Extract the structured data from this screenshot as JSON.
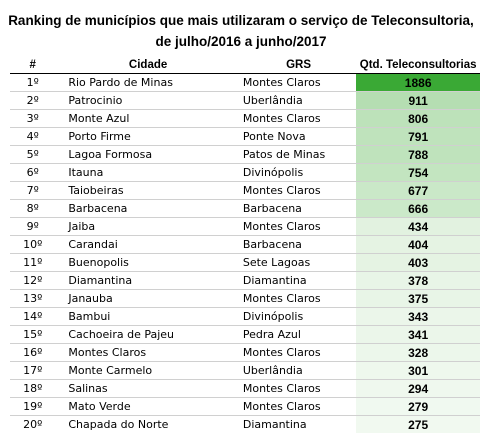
{
  "title": {
    "line1": "Ranking de municípios que mais utilizaram o serviço de Teleconsultoria,",
    "line2": "de julho/2016 a junho/2017"
  },
  "headers": {
    "rank": "#",
    "city": "Cidade",
    "grs": "GRS",
    "qtd": "Qtd. Teleconsultorias"
  },
  "rows": [
    {
      "rank": "1º",
      "city": "Rio Pardo de Minas",
      "grs": "Montes Claros",
      "qtd": "1886",
      "value": 1886,
      "color": "#3aa935"
    },
    {
      "rank": "2º",
      "city": "Patrocinio",
      "grs": "Uberlândia",
      "qtd": "911",
      "value": 911,
      "color": "#b5deb2"
    },
    {
      "rank": "3º",
      "city": "Monte Azul",
      "grs": "Montes Claros",
      "qtd": "806",
      "value": 806,
      "color": "#bde2ba"
    },
    {
      "rank": "4º",
      "city": "Porto Firme",
      "grs": "Ponte Nova",
      "qtd": "791",
      "value": 791,
      "color": "#bfe3bc"
    },
    {
      "rank": "5º",
      "city": "Lagoa Formosa",
      "grs": "Patos de Minas",
      "qtd": "788",
      "value": 788,
      "color": "#bfe3bc"
    },
    {
      "rank": "6º",
      "city": "Itauna",
      "grs": "Divinópolis",
      "qtd": "754",
      "value": 754,
      "color": "#c3e5c0"
    },
    {
      "rank": "7º",
      "city": "Taiobeiras",
      "grs": "Montes Claros",
      "qtd": "677",
      "value": 677,
      "color": "#cae8c8"
    },
    {
      "rank": "8º",
      "city": "Barbacena",
      "grs": "Barbacena",
      "qtd": "666",
      "value": 666,
      "color": "#cbe9c9"
    },
    {
      "rank": "9º",
      "city": "Jaiba",
      "grs": "Montes Claros",
      "qtd": "434",
      "value": 434,
      "color": "#e2f2e0"
    },
    {
      "rank": "10º",
      "city": "Carandai",
      "grs": "Barbacena",
      "qtd": "404",
      "value": 404,
      "color": "#e5f3e3"
    },
    {
      "rank": "11º",
      "city": "Buenopolis",
      "grs": "Sete Lagoas",
      "qtd": "403",
      "value": 403,
      "color": "#e5f3e3"
    },
    {
      "rank": "12º",
      "city": "Diamantina",
      "grs": "Diamantina",
      "qtd": "378",
      "value": 378,
      "color": "#e8f5e7"
    },
    {
      "rank": "13º",
      "city": "Janauba",
      "grs": "Montes Claros",
      "qtd": "375",
      "value": 375,
      "color": "#e8f5e7"
    },
    {
      "rank": "14º",
      "city": "Bambui",
      "grs": "Divinópolis",
      "qtd": "343",
      "value": 343,
      "color": "#ebf6ea"
    },
    {
      "rank": "15º",
      "city": "Cachoeira de Pajeu",
      "grs": "Pedra Azul",
      "qtd": "341",
      "value": 341,
      "color": "#ebf6ea"
    },
    {
      "rank": "16º",
      "city": "Montes Claros",
      "grs": "Montes Claros",
      "qtd": "328",
      "value": 328,
      "color": "#ecf7eb"
    },
    {
      "rank": "17º",
      "city": "Monte Carmelo",
      "grs": "Uberlândia",
      "qtd": "301",
      "value": 301,
      "color": "#eef8ed"
    },
    {
      "rank": "18º",
      "city": "Salinas",
      "grs": "Montes Claros",
      "qtd": "294",
      "value": 294,
      "color": "#eff8ee"
    },
    {
      "rank": "19º",
      "city": "Mato Verde",
      "grs": "Montes Claros",
      "qtd": "279",
      "value": 279,
      "color": "#f0f9f0"
    },
    {
      "rank": "20º",
      "city": "Chapada do Norte",
      "grs": "Diamantina",
      "qtd": "275",
      "value": 275,
      "color": "#f1f9f0"
    }
  ]
}
